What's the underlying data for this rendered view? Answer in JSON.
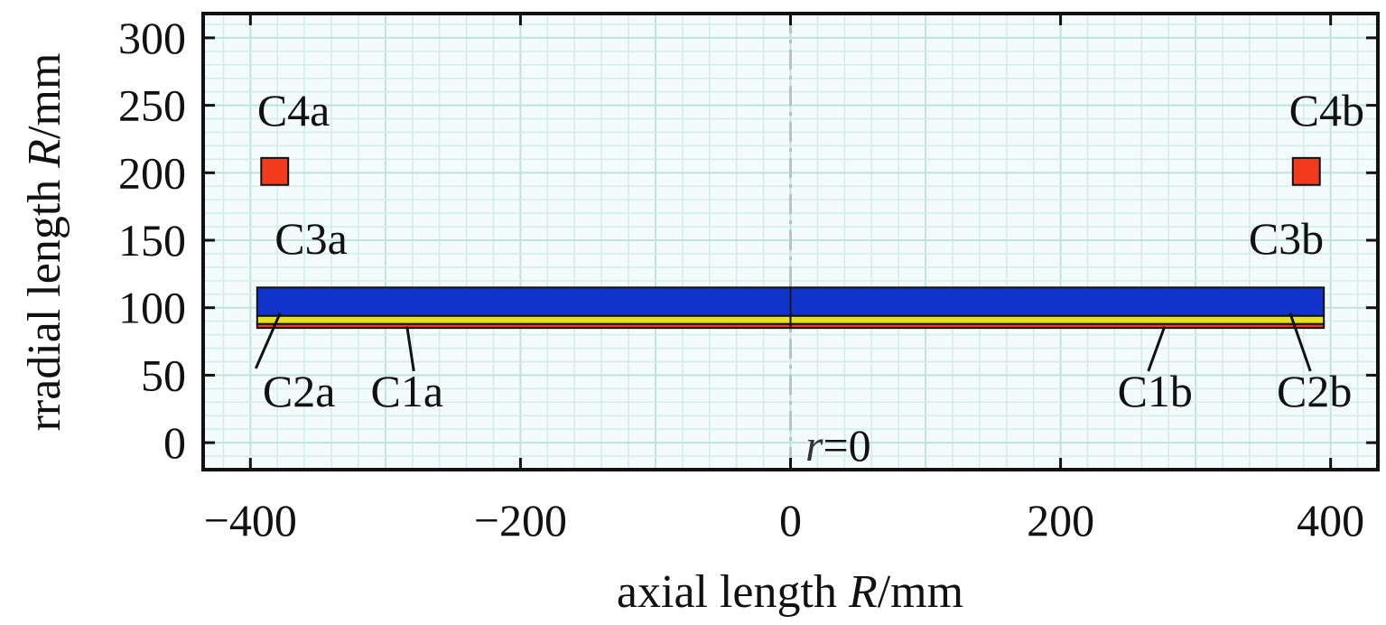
{
  "chart_data": {
    "type": "diagram",
    "x_axis": {
      "label_main": "axial length ",
      "label_var": "R",
      "label_unit": "/mm",
      "range": [
        -435,
        435
      ],
      "ticks": [
        -400,
        -200,
        0,
        200,
        400
      ],
      "tick_labels": [
        "−400",
        "−200",
        "0",
        "200",
        "400"
      ]
    },
    "y_axis": {
      "label_main": "rradial length ",
      "label_var": "R",
      "label_unit": "/mm",
      "range": [
        -20,
        318
      ],
      "ticks": [
        0,
        50,
        100,
        150,
        200,
        250,
        300
      ],
      "tick_labels": [
        "0",
        "50",
        "100",
        "150",
        "200",
        "250",
        "300"
      ]
    },
    "grid": true,
    "center_line": {
      "x": 0,
      "label_var": "r",
      "label_rest": "=0"
    },
    "coils": [
      {
        "name": "C1a",
        "x0": -395,
        "x1": 0,
        "r0": 85,
        "r1": 88,
        "color": "#f23a1c"
      },
      {
        "name": "C1b",
        "x0": 0,
        "x1": 395,
        "r0": 85,
        "r1": 88,
        "color": "#f23a1c"
      },
      {
        "name": "C2a",
        "x0": -395,
        "x1": 0,
        "r0": 88,
        "r1": 94,
        "color": "#e6e01e"
      },
      {
        "name": "C2b",
        "x0": 0,
        "x1": 395,
        "r0": 88,
        "r1": 94,
        "color": "#e6e01e"
      },
      {
        "name": "C3a",
        "x0": -395,
        "x1": 0,
        "r0": 94,
        "r1": 115,
        "color": "#1133cc"
      },
      {
        "name": "C3b",
        "x0": 0,
        "x1": 395,
        "r0": 94,
        "r1": 115,
        "color": "#1133cc"
      },
      {
        "name": "C4a",
        "x0": -392,
        "x1": -372,
        "r0": 191,
        "r1": 211,
        "color": "#f23a1c"
      },
      {
        "name": "C4b",
        "x0": 372,
        "x1": 392,
        "r0": 191,
        "r1": 211,
        "color": "#f23a1c"
      }
    ],
    "labels": [
      {
        "text": "C4a",
        "x": -395,
        "y": 235,
        "anchor": "start"
      },
      {
        "text": "C4b",
        "x": 425,
        "y": 235,
        "anchor": "end"
      },
      {
        "text": "C3a",
        "x": -382,
        "y": 140,
        "anchor": "start"
      },
      {
        "text": "C3b",
        "x": 395,
        "y": 140,
        "anchor": "end"
      },
      {
        "text": "C2a",
        "x": -364,
        "y": 27,
        "anchor": "middle"
      },
      {
        "text": "C1a",
        "x": -284,
        "y": 27,
        "anchor": "middle"
      },
      {
        "text": "C1b",
        "x": 270,
        "y": 27,
        "anchor": "middle"
      },
      {
        "text": "C2b",
        "x": 388,
        "y": 27,
        "anchor": "middle"
      }
    ],
    "leaders": [
      {
        "name": "C2a",
        "x0": -378,
        "y0": 96,
        "x1": -396,
        "y1": 55
      },
      {
        "name": "C1a",
        "x0": -284,
        "y0": 86,
        "x1": -279,
        "y1": 53
      },
      {
        "name": "C1b",
        "x0": 277,
        "y0": 86,
        "x1": 265,
        "y1": 53
      },
      {
        "name": "C2b",
        "x0": 370,
        "y0": 96,
        "x1": 385,
        "y1": 53
      }
    ]
  }
}
